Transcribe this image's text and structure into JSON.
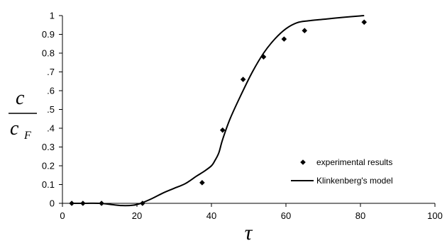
{
  "chart_data": {
    "type": "scatter",
    "xlabel": "τ",
    "ylabel": {
      "numerator": "c",
      "denominator": "c",
      "denominator_subscript": "F"
    },
    "xlim": [
      0,
      100
    ],
    "ylim": [
      0,
      1
    ],
    "x_ticks": [
      "0",
      "20",
      "40",
      "60",
      "80",
      "100"
    ],
    "x_tick_values": [
      0,
      20,
      40,
      60,
      80,
      100
    ],
    "y_ticks": [
      "0",
      "0.1",
      "0.2",
      "0.3",
      ".4",
      ".5",
      ".6",
      ".7",
      "0.8",
      "0.9",
      "1"
    ],
    "y_tick_values": [
      0,
      0.1,
      0.2,
      0.3,
      0.4,
      0.5,
      0.6,
      0.7,
      0.8,
      0.9,
      1.0
    ],
    "grid": false,
    "legend_position": "bottom-right",
    "series": [
      {
        "name": "experimental results",
        "kind": "points",
        "marker": "diamond",
        "color": "#000000",
        "x": [
          2.5,
          5.5,
          10.5,
          21.5,
          37.5,
          43,
          48.5,
          54,
          59.5,
          65,
          81
        ],
        "y": [
          0.0,
          0.0,
          0.0,
          0.0,
          0.11,
          0.39,
          0.66,
          0.78,
          0.875,
          0.92,
          0.965
        ]
      },
      {
        "name": "Klinkenberg's model",
        "kind": "line",
        "color": "#000000",
        "x": [
          2.5,
          5,
          10,
          13,
          16,
          19,
          21,
          24,
          27,
          30,
          33,
          36,
          38,
          40,
          41,
          42,
          43,
          45,
          48,
          51,
          54,
          57,
          60,
          63,
          66,
          70,
          75,
          81
        ],
        "y": [
          0.0,
          0.0,
          0.0,
          -0.006,
          -0.012,
          -0.01,
          0.0,
          0.025,
          0.055,
          0.08,
          0.105,
          0.145,
          0.17,
          0.2,
          0.23,
          0.27,
          0.34,
          0.45,
          0.58,
          0.7,
          0.8,
          0.875,
          0.93,
          0.962,
          0.972,
          0.98,
          0.99,
          1.0
        ]
      }
    ]
  }
}
